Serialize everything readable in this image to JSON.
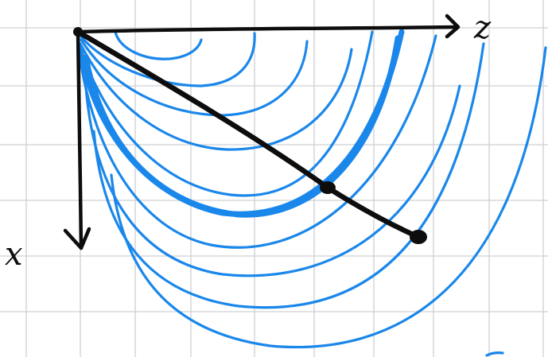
{
  "canvas": {
    "background": "#ffffff"
  },
  "colors": {
    "grid": "#cfd0d2",
    "ink_blue": "#1a87ea",
    "ink_black": "#0d0d0d"
  },
  "axes": {
    "horizontal_label": "z",
    "vertical_label": "x"
  },
  "elements": {
    "origin": "origin-point",
    "ray": "diagonal-ray",
    "markers": [
      "intersection-marker",
      "ray-end-marker"
    ],
    "arc_family": "concentric-blue-arcs",
    "arc_count": 11
  }
}
